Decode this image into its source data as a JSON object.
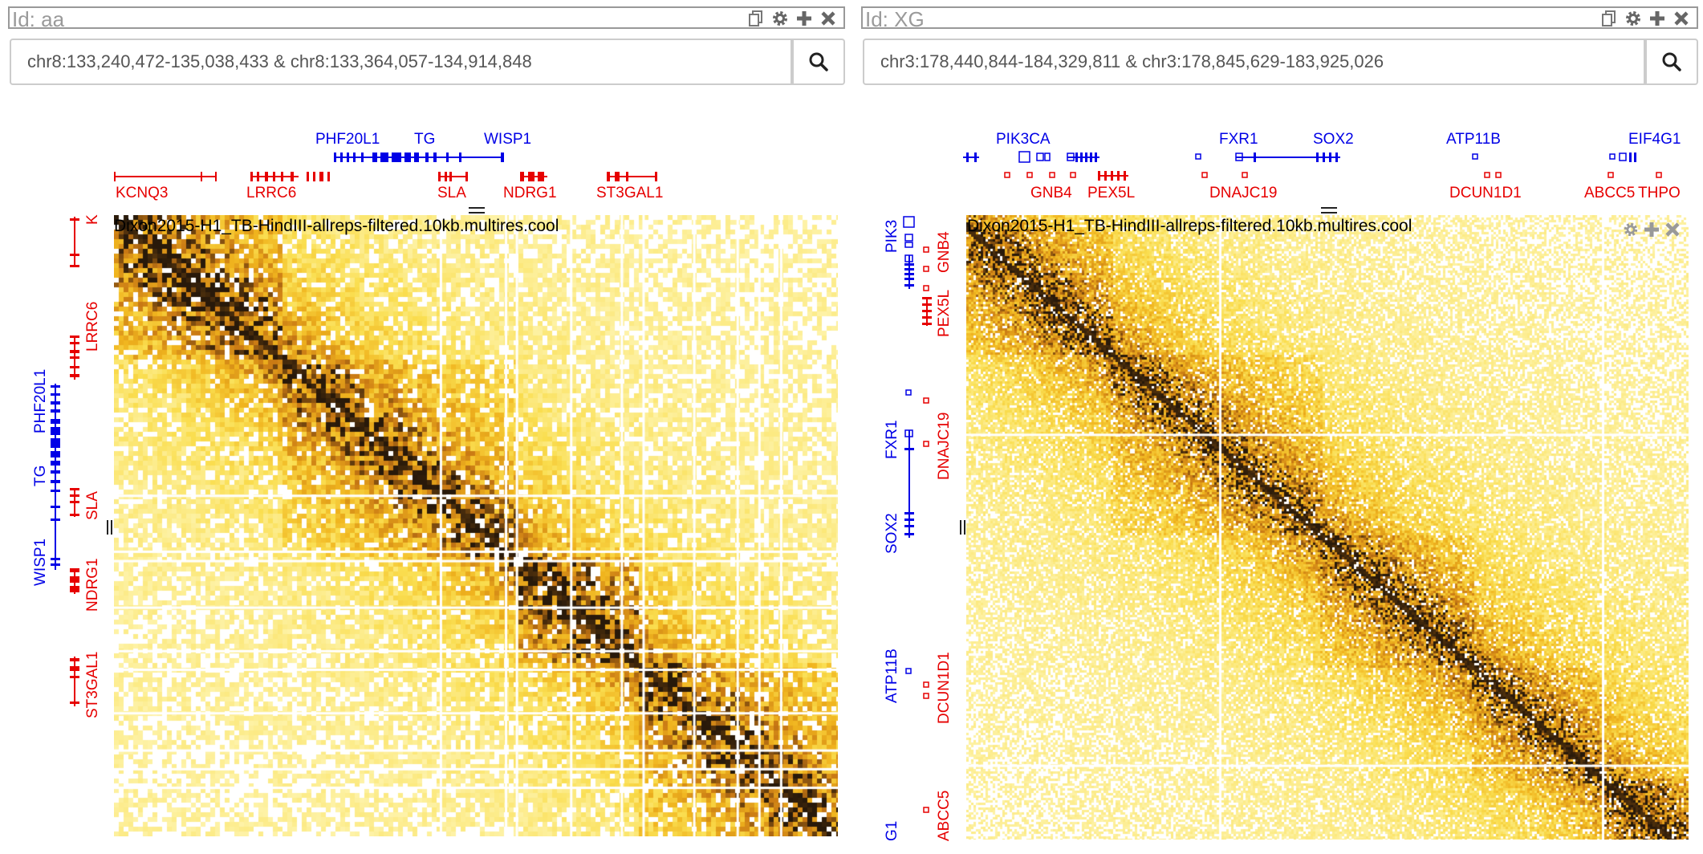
{
  "views": [
    {
      "id_label": "Id: aa",
      "location": "chr8:133,240,472-135,038,433 & chr8:133,364,057-134,914,848",
      "search_icon": "search-icon",
      "top_blue_genes": [
        "PHF20L1",
        "TG",
        "WISP1"
      ],
      "top_red_genes": [
        "KCNQ3",
        "LRRC6",
        "SLA",
        "NDRG1",
        "ST3GAL1"
      ],
      "left_blue_genes": [
        "PHF20L1",
        "TG",
        "WISP1"
      ],
      "left_red_genes": [
        "K",
        "LRRC6",
        "SLA",
        "NDRG1",
        "ST3GAL1"
      ],
      "heatmap_title": "Dixon2015-H1_TB-HindIII-allreps-filtered.10kb.multires.cool"
    },
    {
      "id_label": "Id: XG",
      "location": "chr3:178,440,844-184,329,811 & chr3:178,845,629-183,925,026",
      "search_icon": "search-icon",
      "top_blue_genes": [
        "PIK3CA",
        "FXR1",
        "SOX2",
        "ATP11B",
        "EIF4G1"
      ],
      "top_red_genes": [
        "GNB4",
        "PEX5L",
        "DNAJC19",
        "DCUN1D1",
        "ABCC5",
        "THPO"
      ],
      "left_blue_genes": [
        "PIK3",
        "FXR1",
        "SOX2",
        "ATP11B",
        "G1"
      ],
      "left_red_genes": [
        "GNB4",
        "PEX5L",
        "DNAJC19",
        "DCUN1D1",
        "ABCC5"
      ],
      "heatmap_title": "Dixon2015-H1_TB-HindIII-allreps-filtered.10kb.multires.cool"
    }
  ],
  "colors": {
    "heat_low": "#fff6a0",
    "heat_mid": "#f5c820",
    "heat_high": "#d88a10",
    "heat_max": "#2a1a08",
    "gene_plus": "#0000e6",
    "gene_minus": "#e60000"
  }
}
